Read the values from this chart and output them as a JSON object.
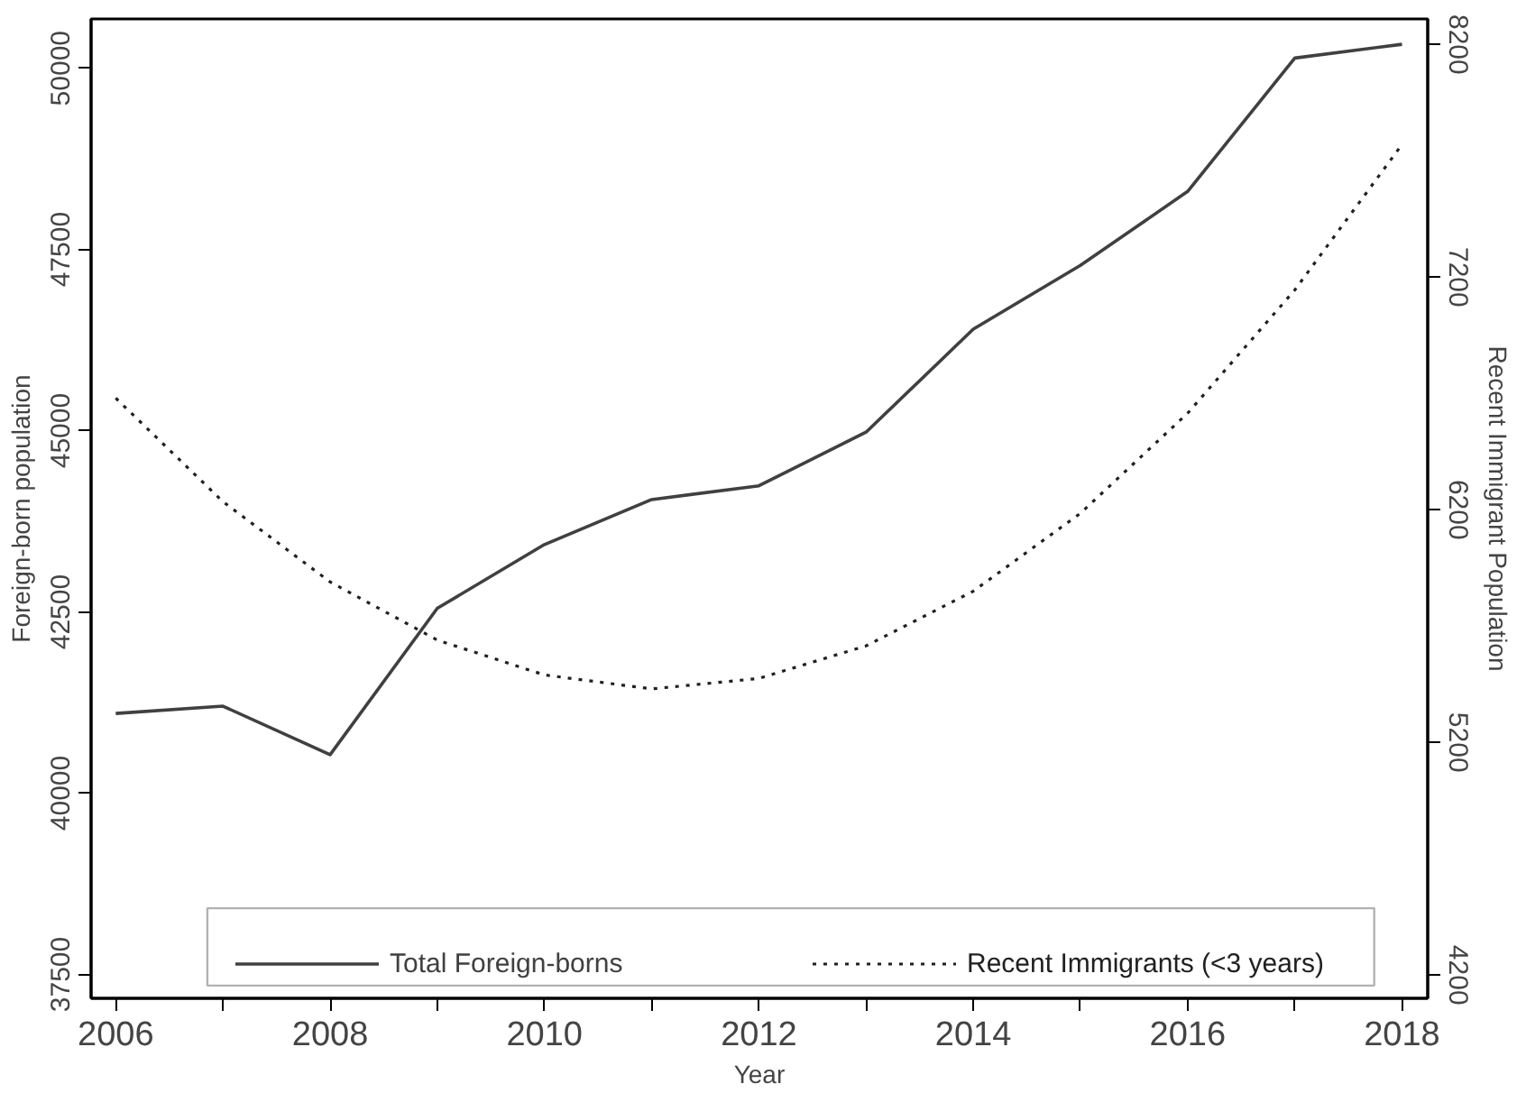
{
  "chart_data": {
    "type": "line",
    "xlabel": "Year",
    "ylabel": "Foreign-born population",
    "y2label": "Recent Immigrant Population",
    "x": [
      2006,
      2007,
      2008,
      2009,
      2010,
      2011,
      2012,
      2013,
      2014,
      2015,
      2016,
      2017,
      2018
    ],
    "series": [
      {
        "name": "Total Foreign-borns",
        "color": "#404040",
        "line_style": "solid",
        "values": [
          41100,
          41200,
          40530,
          42550,
          43430,
          44050,
          44240,
          44980,
          46400,
          47280,
          48300,
          50140,
          50330
        ]
      },
      {
        "name": "Recent Immigrants (<3 years)",
        "color": "#202020",
        "line_style": "dotted",
        "axis": "y2",
        "values": [
          6680,
          6235,
          5890,
          5640,
          5490,
          5430,
          5475,
          5615,
          5850,
          6185,
          6615,
          7145,
          7770
        ]
      }
    ],
    "xlim": [
      2005.77,
      2018.24
    ],
    "ylim": [
      37170,
      50680
    ],
    "y2lim": [
      4100,
      8310
    ],
    "xticks": [
      2006,
      {
        "value": 2007,
        "label": null
      },
      2008,
      {
        "value": 2009,
        "label": null
      },
      2010,
      {
        "value": 2011,
        "label": null
      },
      2012,
      {
        "value": 2013,
        "label": null
      },
      2014,
      {
        "value": 2015,
        "label": null
      },
      2016,
      {
        "value": 2017,
        "label": null
      },
      2018
    ],
    "yticks": [
      37500,
      40000,
      42500,
      45000,
      47500,
      50000
    ],
    "y2ticks": [
      4200,
      5200,
      6200,
      7200,
      8200
    ],
    "grid": false,
    "legend": "bottom",
    "marker": "none"
  }
}
